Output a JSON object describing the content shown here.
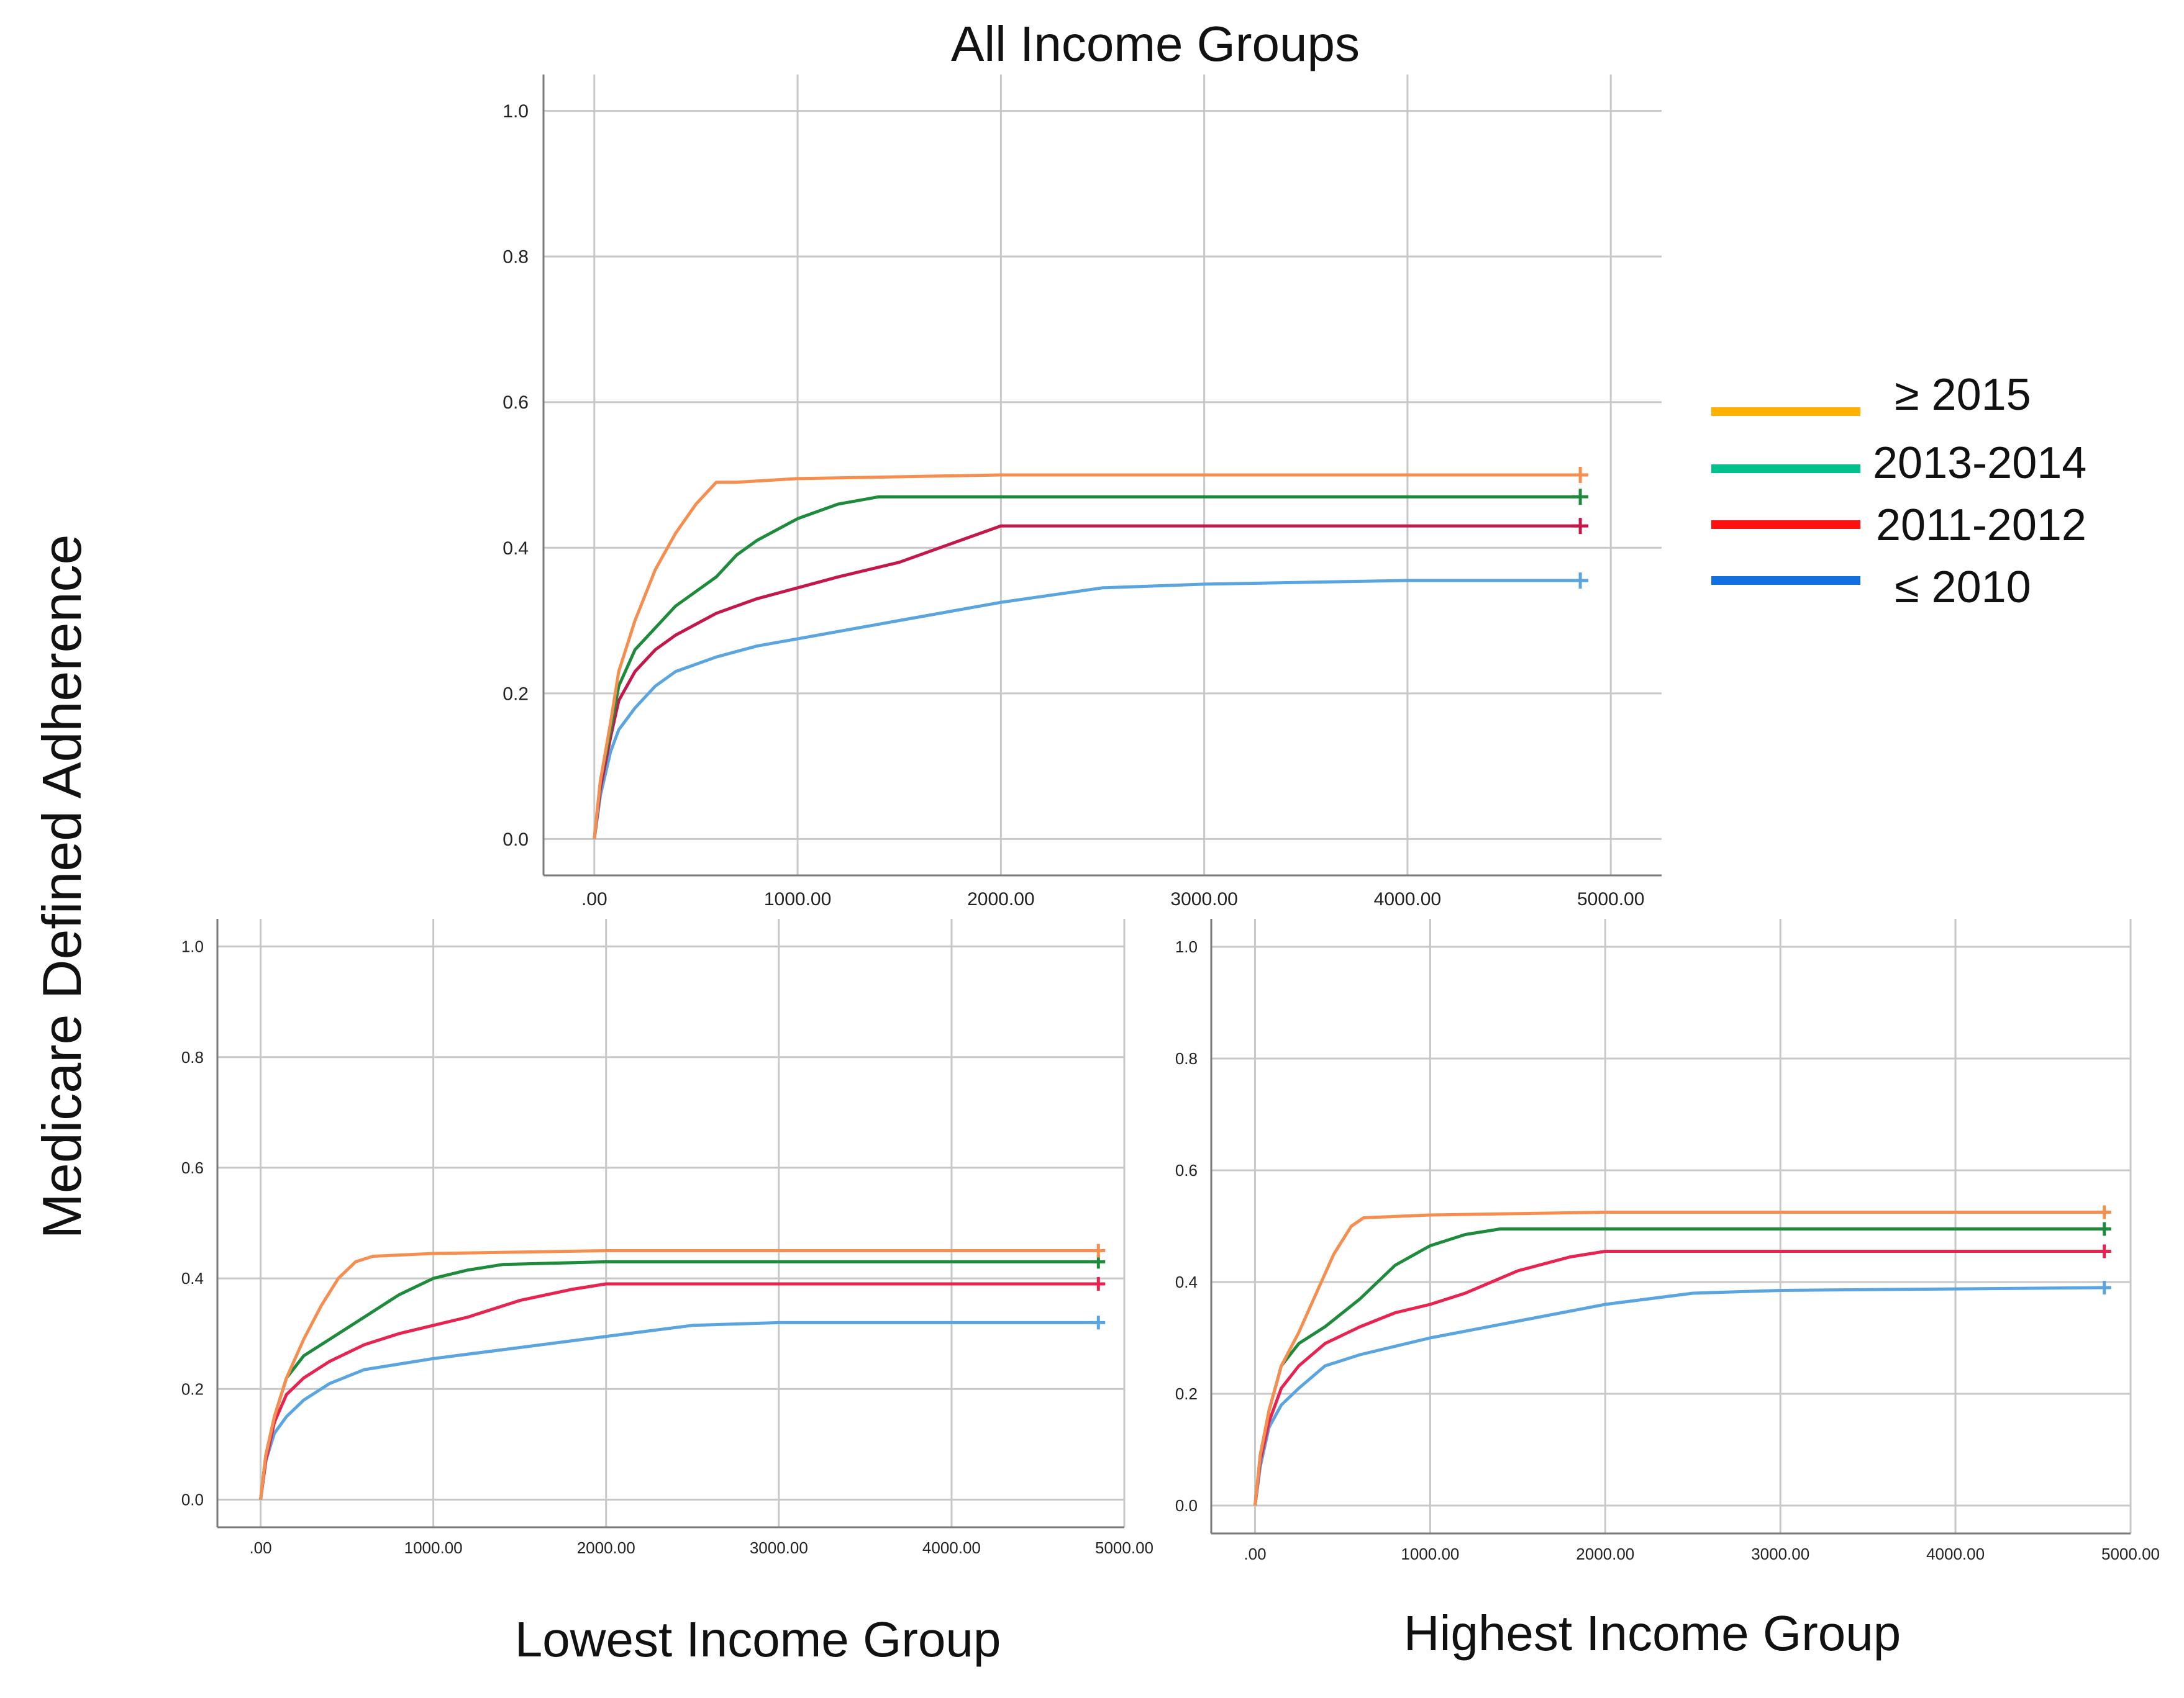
{
  "figure": {
    "top_title": "All Income Groups",
    "y_axis_label": "Medicare Defined Adherence",
    "bottom_left_title": "Lowest Income Group",
    "bottom_right_title": "Highest Income Group"
  },
  "legend": [
    {
      "label": "≥ 2015",
      "color": "#FFB000"
    },
    {
      "label": "2013-2014",
      "color": "#00C08B"
    },
    {
      "label": "2011-2012",
      "color": "#FF1010"
    },
    {
      "label": "≤ 2010",
      "color": "#1170E0"
    }
  ],
  "chart_data": [
    {
      "type": "line",
      "panel": "All Income Groups",
      "title": "All Income Groups",
      "xlim": [
        -250,
        5250
      ],
      "ylim": [
        -0.05,
        1.05
      ],
      "x_ticks": [
        ".00",
        "1000.00",
        "2000.00",
        "3000.00",
        "4000.00",
        "5000.00"
      ],
      "y_ticks": [
        "0.0",
        "0.2",
        "0.4",
        "0.6",
        "0.8",
        "1.0"
      ],
      "grid": true,
      "series": [
        {
          "name": "≥ 2015",
          "color": "#F58E4F",
          "censor_at": 4850,
          "x": [
            0,
            30,
            80,
            120,
            200,
            300,
            400,
            500,
            600,
            700,
            1000,
            2000,
            3000,
            4850
          ],
          "y": [
            0,
            0.08,
            0.16,
            0.23,
            0.3,
            0.37,
            0.42,
            0.46,
            0.49,
            0.49,
            0.495,
            0.5,
            0.5,
            0.5
          ]
        },
        {
          "name": "2013-2014",
          "color": "#1E8B3C",
          "censor_at": 4850,
          "x": [
            0,
            30,
            80,
            120,
            200,
            300,
            400,
            500,
            600,
            700,
            800,
            1000,
            1200,
            1400,
            2000,
            3000,
            4850
          ],
          "y": [
            0,
            0.08,
            0.15,
            0.21,
            0.26,
            0.29,
            0.32,
            0.34,
            0.36,
            0.39,
            0.41,
            0.44,
            0.46,
            0.47,
            0.47,
            0.47,
            0.47
          ]
        },
        {
          "name": "2011-2012",
          "color": "#C4184A",
          "censor_at": 4850,
          "x": [
            0,
            30,
            80,
            120,
            200,
            300,
            400,
            600,
            800,
            1000,
            1200,
            1500,
            1800,
            2000,
            3000,
            4850
          ],
          "y": [
            0,
            0.07,
            0.14,
            0.19,
            0.23,
            0.26,
            0.28,
            0.31,
            0.33,
            0.345,
            0.36,
            0.38,
            0.41,
            0.43,
            0.43,
            0.43
          ]
        },
        {
          "name": "≤ 2010",
          "color": "#5AA4DF",
          "censor_at": 4850,
          "x": [
            0,
            30,
            80,
            120,
            200,
            300,
            400,
            600,
            800,
            1000,
            1500,
            2000,
            2500,
            3000,
            4000,
            4850
          ],
          "y": [
            0,
            0.06,
            0.12,
            0.15,
            0.18,
            0.21,
            0.23,
            0.25,
            0.265,
            0.275,
            0.3,
            0.325,
            0.345,
            0.35,
            0.355,
            0.355
          ]
        }
      ]
    },
    {
      "type": "line",
      "panel": "Lowest Income Group",
      "title": "Lowest Income Group",
      "xlim": [
        -250,
        5000
      ],
      "ylim": [
        -0.05,
        1.05
      ],
      "x_ticks": [
        ".00",
        "1000.00",
        "2000.00",
        "3000.00",
        "4000.00",
        "5000.00"
      ],
      "y_ticks": [
        "0.0",
        "0.2",
        "0.4",
        "0.6",
        "0.8",
        "1.0"
      ],
      "grid": true,
      "series": [
        {
          "name": "≥ 2015",
          "color": "#F58E4F",
          "censor_at": 4850,
          "x": [
            0,
            30,
            80,
            150,
            250,
            350,
            450,
            550,
            650,
            1000,
            2000,
            3000,
            4850
          ],
          "y": [
            0,
            0.08,
            0.15,
            0.22,
            0.29,
            0.35,
            0.4,
            0.43,
            0.44,
            0.445,
            0.45,
            0.45,
            0.45
          ]
        },
        {
          "name": "2013-2014",
          "color": "#1E8B3C",
          "censor_at": 4850,
          "x": [
            0,
            30,
            80,
            150,
            250,
            400,
            600,
            800,
            1000,
            1200,
            1400,
            2000,
            3000,
            4850
          ],
          "y": [
            0,
            0.08,
            0.15,
            0.22,
            0.26,
            0.29,
            0.33,
            0.37,
            0.4,
            0.415,
            0.425,
            0.43,
            0.43,
            0.43
          ]
        },
        {
          "name": "2011-2012",
          "color": "#E8234F",
          "censor_at": 4850,
          "x": [
            0,
            30,
            80,
            150,
            250,
            400,
            600,
            800,
            1000,
            1200,
            1500,
            1800,
            2000,
            3000,
            4850
          ],
          "y": [
            0,
            0.07,
            0.14,
            0.19,
            0.22,
            0.25,
            0.28,
            0.3,
            0.315,
            0.33,
            0.36,
            0.38,
            0.39,
            0.39,
            0.39
          ]
        },
        {
          "name": "≤ 2010",
          "color": "#5AA4DF",
          "censor_at": 4850,
          "x": [
            0,
            30,
            80,
            150,
            250,
            400,
            600,
            1000,
            1500,
            2000,
            2500,
            3000,
            4850
          ],
          "y": [
            0,
            0.07,
            0.12,
            0.15,
            0.18,
            0.21,
            0.235,
            0.255,
            0.275,
            0.295,
            0.315,
            0.32,
            0.32
          ]
        }
      ]
    },
    {
      "type": "line",
      "panel": "Highest Income Group",
      "title": "Highest Income Group",
      "xlim": [
        -250,
        5000
      ],
      "ylim": [
        -0.05,
        1.05
      ],
      "x_ticks": [
        ".00",
        "1000.00",
        "2000.00",
        "3000.00",
        "4000.00",
        "5000.00"
      ],
      "y_ticks": [
        "0.0",
        "0.2",
        "0.4",
        "0.6",
        "0.8",
        "1.0"
      ],
      "grid": true,
      "series": [
        {
          "name": "≥ 2015",
          "color": "#F58E4F",
          "censor_at": 4850,
          "x": [
            0,
            30,
            80,
            150,
            250,
            350,
            450,
            550,
            620,
            1000,
            2000,
            3000,
            4850
          ],
          "y": [
            0,
            0.09,
            0.17,
            0.25,
            0.31,
            0.38,
            0.45,
            0.5,
            0.515,
            0.52,
            0.525,
            0.525,
            0.525
          ]
        },
        {
          "name": "2013-2014",
          "color": "#1E8B3C",
          "censor_at": 4850,
          "x": [
            0,
            30,
            80,
            150,
            250,
            400,
            600,
            800,
            1000,
            1200,
            1400,
            2000,
            3000,
            4850
          ],
          "y": [
            0,
            0.09,
            0.17,
            0.25,
            0.29,
            0.32,
            0.37,
            0.43,
            0.465,
            0.485,
            0.495,
            0.495,
            0.495,
            0.495
          ]
        },
        {
          "name": "2011-2012",
          "color": "#E8234F",
          "censor_at": 4850,
          "x": [
            0,
            30,
            80,
            150,
            250,
            400,
            600,
            800,
            1000,
            1200,
            1500,
            1800,
            2000,
            3000,
            4850
          ],
          "y": [
            0,
            0.08,
            0.15,
            0.21,
            0.25,
            0.29,
            0.32,
            0.345,
            0.36,
            0.38,
            0.42,
            0.445,
            0.455,
            0.455,
            0.455
          ]
        },
        {
          "name": "≤ 2010",
          "color": "#5AA4DF",
          "censor_at": 4850,
          "x": [
            0,
            30,
            80,
            150,
            250,
            400,
            600,
            1000,
            1500,
            2000,
            2500,
            3000,
            4850
          ],
          "y": [
            0,
            0.07,
            0.14,
            0.18,
            0.21,
            0.25,
            0.27,
            0.3,
            0.33,
            0.36,
            0.38,
            0.385,
            0.39
          ]
        }
      ]
    }
  ]
}
